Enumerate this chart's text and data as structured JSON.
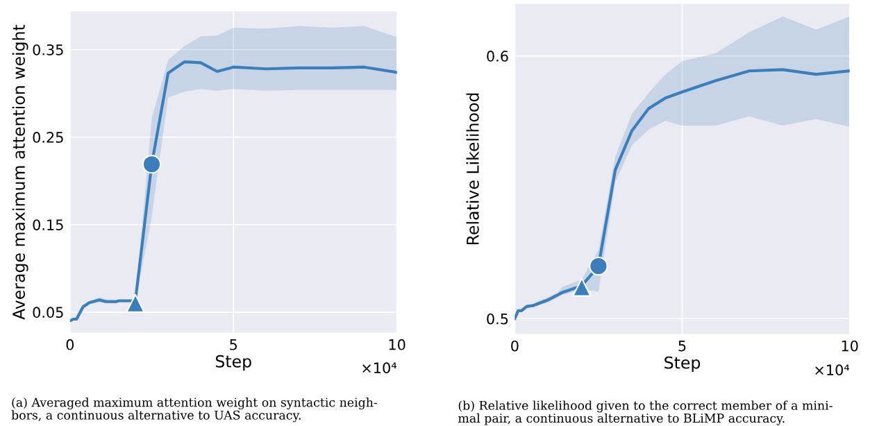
{
  "chart_data": [
    {
      "type": "line",
      "xlabel": "Step",
      "ylabel": "Average maximum attention weight",
      "xlim": [
        0,
        10
      ],
      "xticks": [
        0,
        5,
        10
      ],
      "ylim": [
        0.026,
        0.394
      ],
      "yticks": [
        0.05,
        0.15,
        0.25,
        0.35
      ],
      "grid": true,
      "legend": false,
      "annotations": [
        "×10⁴",
        "(a) Averaged maximum attention weight on syntactic neigh-\nbors, a continuous alternative to UAS accuracy."
      ],
      "series": [
        {
          "color": "#3a7ebb",
          "marker": "none",
          "line_style": "solid",
          "x": [
            0,
            0.1,
            0.2,
            0.4,
            0.6,
            0.9,
            1.1,
            1.4,
            1.5,
            2.0,
            2.5,
            3.0,
            3.5,
            4.0,
            4.5,
            5,
            6,
            7,
            8,
            9,
            10
          ],
          "values": [
            0.04,
            0.042,
            0.042,
            0.056,
            0.061,
            0.064,
            0.062,
            0.062,
            0.063,
            0.063,
            0.219,
            0.323,
            0.336,
            0.335,
            0.325,
            0.33,
            0.328,
            0.329,
            0.329,
            0.33,
            0.324
          ],
          "lower": [
            0.039,
            0.041,
            0.041,
            0.055,
            0.059,
            0.061,
            0.06,
            0.06,
            0.061,
            0.061,
            0.159,
            0.295,
            0.302,
            0.305,
            0.303,
            0.305,
            0.303,
            0.304,
            0.304,
            0.304,
            0.304
          ],
          "upper": [
            0.041,
            0.043,
            0.043,
            0.057,
            0.062,
            0.067,
            0.065,
            0.064,
            0.064,
            0.064,
            0.271,
            0.338,
            0.354,
            0.365,
            0.366,
            0.375,
            0.374,
            0.377,
            0.375,
            0.377,
            0.364
          ]
        },
        {
          "type": "scatter",
          "color": "#3a7ebb",
          "marker": "triangle",
          "x": [
            2.0
          ],
          "values": [
            0.06
          ]
        },
        {
          "type": "scatter",
          "color": "#3a7ebb",
          "marker": "circle",
          "x": [
            2.5
          ],
          "values": [
            0.219
          ]
        }
      ]
    },
    {
      "type": "line",
      "xlabel": "Step",
      "ylabel": "Relative Likelihood",
      "xlim": [
        0,
        10
      ],
      "xticks": [
        0,
        5,
        10
      ],
      "ylim": [
        0.494,
        0.62
      ],
      "yticks": [
        0.5,
        0.6
      ],
      "grid": true,
      "legend": false,
      "annotations": [
        "×10⁴",
        "(b) Relative likelihood given to the correct member of a mini-\nmal pair, a continuous alternative to BLiMP accuracy."
      ],
      "series": [
        {
          "color": "#3a7ebb",
          "marker": "none",
          "line_style": "solid",
          "x": [
            0,
            0.1,
            0.2,
            0.35,
            0.55,
            0.76,
            0.97,
            1.28,
            1.42,
            2.0,
            2.5,
            3.0,
            3.5,
            4.0,
            4.5,
            5,
            6,
            7,
            8,
            9,
            10
          ],
          "values": [
            0.5,
            0.503,
            0.503,
            0.5046,
            0.505,
            0.506,
            0.507,
            0.509,
            0.51,
            0.5125,
            0.52,
            0.5566,
            0.5716,
            0.58,
            0.584,
            0.5863,
            0.5906,
            0.5943,
            0.5948,
            0.593,
            0.5943
          ],
          "lower": [
            0.4995,
            0.5025,
            0.5025,
            0.504,
            0.5043,
            0.5052,
            0.506,
            0.508,
            0.509,
            0.511,
            0.5103,
            0.552,
            0.566,
            0.572,
            0.5753,
            0.5735,
            0.5735,
            0.577,
            0.5735,
            0.576,
            0.573
          ],
          "upper": [
            0.5005,
            0.5035,
            0.5035,
            0.5052,
            0.5057,
            0.507,
            0.508,
            0.51,
            0.512,
            0.515,
            0.526,
            0.5617,
            0.578,
            0.586,
            0.593,
            0.598,
            0.601,
            0.609,
            0.615,
            0.61,
            0.615
          ]
        },
        {
          "type": "scatter",
          "color": "#3a7ebb",
          "marker": "triangle",
          "x": [
            2.0
          ],
          "values": [
            0.512
          ]
        },
        {
          "type": "scatter",
          "color": "#3a7ebb",
          "marker": "circle",
          "x": [
            2.5
          ],
          "values": [
            0.52
          ]
        }
      ]
    }
  ]
}
